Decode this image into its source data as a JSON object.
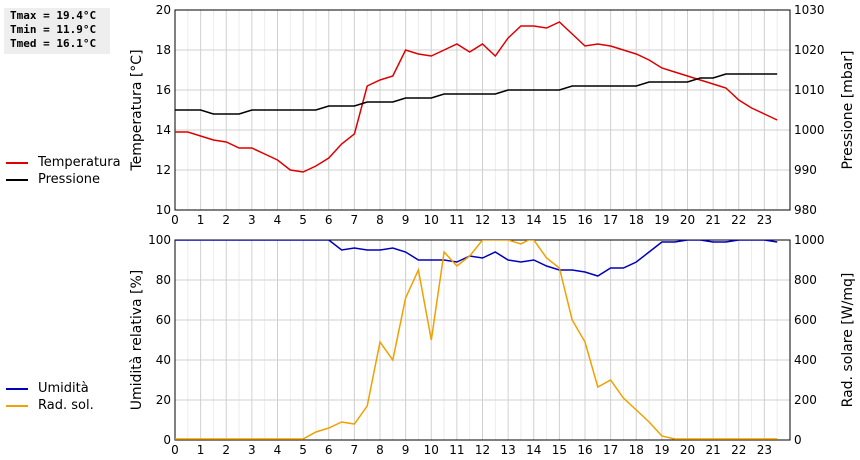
{
  "stats": {
    "tmax": "Tmax = 19.4°C",
    "tmin": "Tmin = 11.9°C",
    "tmed": "Tmed = 16.1°C"
  },
  "colors": {
    "temperatura": "#dd0000",
    "pressione": "#000000",
    "umidita": "#0000bb",
    "radiazione": "#f0a000"
  },
  "chart_data": [
    {
      "type": "line",
      "ylabel": "Temperatura [°C]",
      "y2label": "Pressione [mbar]",
      "xlim": [
        0,
        24
      ],
      "ylim": [
        10,
        20
      ],
      "y2lim": [
        980,
        1030
      ],
      "xticks": [
        "0",
        "1",
        "2",
        "3",
        "4",
        "5",
        "6",
        "7",
        "8",
        "9",
        "10",
        "11",
        "12",
        "13",
        "14",
        "15",
        "16",
        "17",
        "18",
        "19",
        "20",
        "21",
        "22",
        "23"
      ],
      "yticks": [
        "10",
        "12",
        "14",
        "16",
        "18",
        "20"
      ],
      "y2ticks": [
        "980",
        "990",
        "1000",
        "1010",
        "1020",
        "1030"
      ],
      "grid": true,
      "legend": [
        "Temperatura",
        "Pressione"
      ],
      "series": [
        {
          "name": "Temperatura",
          "axis": "left",
          "x": [
            0,
            0.5,
            1,
            1.5,
            2,
            2.5,
            3,
            3.5,
            4,
            4.5,
            5,
            5.5,
            6,
            6.5,
            7,
            7.5,
            8,
            8.5,
            9,
            9.5,
            10,
            10.5,
            11,
            11.5,
            12,
            12.5,
            13,
            13.5,
            14,
            14.5,
            15,
            15.5,
            16,
            16.5,
            17,
            17.5,
            18,
            18.5,
            19,
            19.5,
            20,
            20.5,
            21,
            21.5,
            22,
            22.5,
            23,
            23.5
          ],
          "y": [
            13.9,
            13.9,
            13.7,
            13.5,
            13.4,
            13.1,
            13.1,
            12.8,
            12.5,
            12.0,
            11.9,
            12.2,
            12.6,
            13.3,
            13.8,
            16.2,
            16.5,
            16.7,
            18.0,
            17.8,
            17.7,
            18.0,
            18.3,
            17.9,
            18.3,
            17.7,
            18.6,
            19.2,
            19.2,
            19.1,
            19.4,
            18.8,
            18.2,
            18.3,
            18.2,
            18.0,
            17.8,
            17.5,
            17.1,
            16.9,
            16.7,
            16.5,
            16.3,
            16.1,
            15.5,
            15.1,
            14.8,
            14.5
          ]
        },
        {
          "name": "Pressione",
          "axis": "right",
          "x": [
            0,
            1,
            1.5,
            2,
            2.5,
            3,
            3.5,
            4,
            4.5,
            5,
            5.5,
            6,
            6.5,
            7,
            7.5,
            8,
            8.5,
            9,
            9.5,
            10,
            10.5,
            11,
            11.5,
            12,
            12.5,
            13,
            13.5,
            14,
            14.5,
            15,
            15.5,
            16,
            16.5,
            17,
            17.5,
            18,
            18.5,
            19,
            19.5,
            20,
            20.5,
            21,
            21.5,
            22,
            22.5,
            23,
            23.5
          ],
          "y": [
            1005,
            1005,
            1004,
            1004,
            1004,
            1005,
            1005,
            1005,
            1005,
            1005,
            1005,
            1006,
            1006,
            1006,
            1007,
            1007,
            1007,
            1008,
            1008,
            1008,
            1009,
            1009,
            1009,
            1009,
            1009,
            1010,
            1010,
            1010,
            1010,
            1010,
            1011,
            1011,
            1011,
            1011,
            1011,
            1011,
            1012,
            1012,
            1012,
            1012,
            1013,
            1013,
            1014,
            1014,
            1014,
            1014,
            1014
          ]
        }
      ]
    },
    {
      "type": "line",
      "ylabel": "Umidità relativa [%]",
      "y2label": "Rad. solare [W/mq]",
      "xlim": [
        0,
        24
      ],
      "ylim": [
        0,
        100
      ],
      "y2lim": [
        0,
        1000
      ],
      "xticks": [
        "0",
        "1",
        "2",
        "3",
        "4",
        "5",
        "6",
        "7",
        "8",
        "9",
        "10",
        "11",
        "12",
        "13",
        "14",
        "15",
        "16",
        "17",
        "18",
        "19",
        "20",
        "21",
        "22",
        "23"
      ],
      "yticks": [
        "0",
        "20",
        "40",
        "60",
        "80",
        "100"
      ],
      "y2ticks": [
        "0",
        "200",
        "400",
        "600",
        "800",
        "1000"
      ],
      "grid": true,
      "legend": [
        "Umidità",
        "Rad. sol."
      ],
      "series": [
        {
          "name": "Umidità",
          "axis": "left",
          "x": [
            0,
            1,
            2,
            3,
            4,
            5,
            6,
            6.5,
            7,
            7.5,
            8,
            8.5,
            9,
            9.5,
            10,
            10.5,
            11,
            11.5,
            12,
            12.5,
            13,
            13.5,
            14,
            14.5,
            15,
            15.5,
            16,
            16.5,
            17,
            17.5,
            18,
            18.5,
            19,
            19.5,
            20,
            20.5,
            21,
            21.5,
            22,
            22.5,
            23,
            23.5
          ],
          "y": [
            100,
            100,
            100,
            100,
            100,
            100,
            100,
            95,
            96,
            95,
            95,
            96,
            94,
            90,
            90,
            90,
            89,
            92,
            91,
            94,
            90,
            89,
            90,
            87,
            85,
            85,
            84,
            82,
            86,
            86,
            89,
            94,
            99,
            99,
            100,
            100,
            99,
            99,
            100,
            100,
            100,
            99
          ]
        },
        {
          "name": "Rad. sol.",
          "axis": "right",
          "x": [
            0,
            1,
            2,
            3,
            4,
            5,
            5.5,
            6,
            6.5,
            7,
            7.5,
            8,
            8.5,
            9,
            9.5,
            10,
            10.5,
            11,
            11.5,
            12,
            12.5,
            13,
            13.5,
            13.8,
            14,
            14.5,
            15,
            15.5,
            16,
            16.5,
            17,
            17.5,
            18,
            18.5,
            19,
            19.5,
            20,
            21,
            22,
            23,
            23.5
          ],
          "y": [
            5,
            5,
            5,
            5,
            5,
            5,
            40,
            60,
            90,
            80,
            170,
            490,
            400,
            710,
            850,
            500,
            940,
            870,
            920,
            1000,
            1000,
            1000,
            980,
            1000,
            1000,
            910,
            860,
            600,
            490,
            265,
            300,
            210,
            150,
            90,
            20,
            5,
            5,
            5,
            5,
            5,
            5
          ]
        }
      ]
    }
  ]
}
